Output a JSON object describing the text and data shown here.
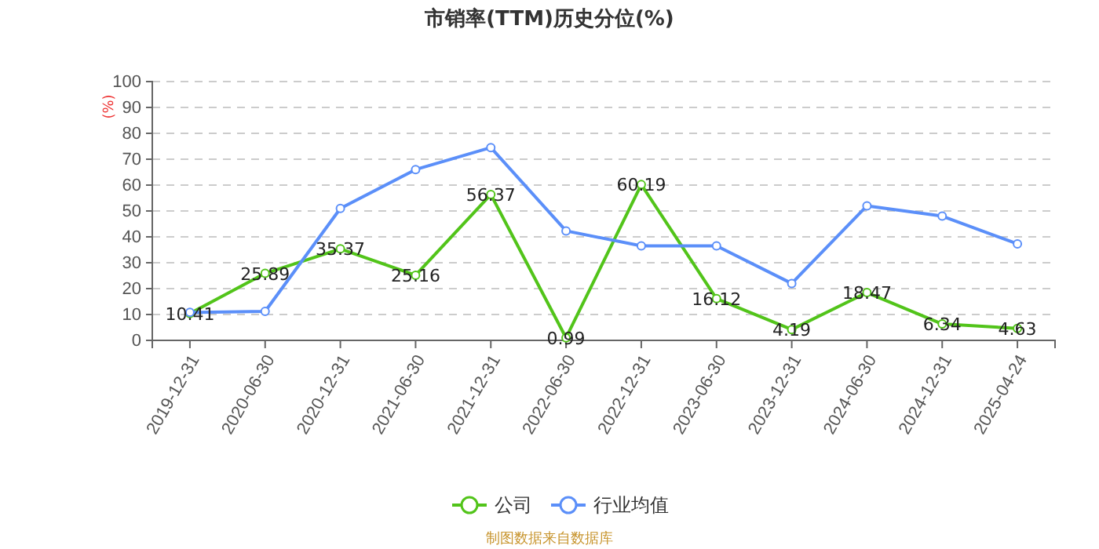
{
  "chart_data": {
    "type": "line",
    "title": "市销率(TTM)历史分位(%)",
    "ylabel": "(%)",
    "categories": [
      "2019-12-31",
      "2020-06-30",
      "2020-12-31",
      "2021-06-30",
      "2021-12-31",
      "2022-06-30",
      "2022-12-31",
      "2023-06-30",
      "2023-12-31",
      "2024-06-30",
      "2024-12-31",
      "2025-04-24"
    ],
    "series": [
      {
        "name": "公司",
        "color": "#52c41a",
        "values": [
          10.41,
          25.89,
          35.37,
          25.16,
          56.37,
          0.99,
          60.19,
          16.12,
          4.19,
          18.47,
          6.34,
          4.63
        ],
        "data_labels": true
      },
      {
        "name": "行业均值",
        "color": "#5b8ff9",
        "values": [
          10.8,
          11.2,
          51,
          66,
          74.5,
          42.3,
          36.5,
          36.5,
          22,
          52,
          48,
          37.3
        ]
      }
    ],
    "ylim": [
      0,
      100
    ],
    "yticks": [
      0,
      10,
      20,
      30,
      40,
      50,
      60,
      70,
      80,
      90,
      100
    ],
    "grid": "y",
    "legend": "bottom",
    "marker": "circle",
    "line_style": "solid",
    "annotations": [
      "制图数据来自数据库"
    ]
  }
}
